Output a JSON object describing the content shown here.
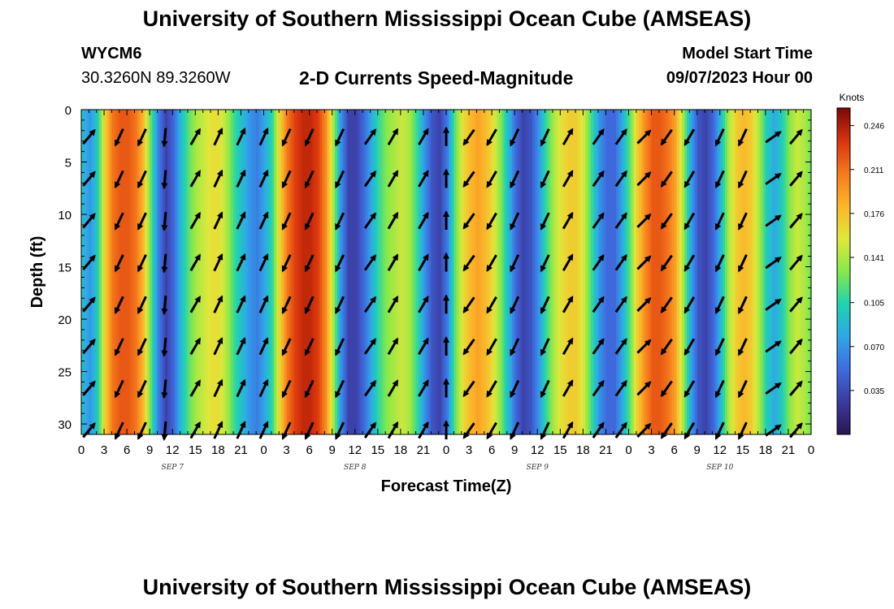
{
  "header": {
    "title": "University of Southern Mississippi Ocean Cube (AMSEAS)",
    "station": "WYCM6",
    "coordinates": "30.3260N  89.3260W",
    "subtitle": "2-D Currents Speed-Magnitude",
    "model_start_label": "Model Start Time",
    "model_start_value": "09/07/2023 Hour 00"
  },
  "footer": {
    "title": "University of Southern Mississippi Ocean Cube (AMSEAS)"
  },
  "chart_data": {
    "type": "heatmap",
    "xlabel": "Forecast Time(Z)",
    "ylabel": "Depth (ft)",
    "xlim": [
      0,
      96
    ],
    "ylim": [
      31,
      0
    ],
    "x_ticks": [
      0,
      3,
      6,
      9,
      12,
      15,
      18,
      21,
      24,
      27,
      30,
      33,
      36,
      39,
      42,
      45,
      48,
      51,
      54,
      57,
      60,
      63,
      66,
      69,
      72,
      75,
      78,
      81,
      84,
      87,
      90,
      93,
      96
    ],
    "x_tick_labels": [
      "0",
      "3",
      "6",
      "9",
      "12",
      "15",
      "18",
      "21",
      "0",
      "3",
      "6",
      "9",
      "12",
      "15",
      "18",
      "21",
      "0",
      "3",
      "6",
      "9",
      "12",
      "15",
      "18",
      "21",
      "0",
      "3",
      "6",
      "9",
      "12",
      "15",
      "18",
      "21",
      "0"
    ],
    "y_ticks": [
      0,
      5,
      10,
      15,
      20,
      25,
      30
    ],
    "y_tick_labels": [
      "0",
      "5",
      "10",
      "15",
      "20",
      "25",
      "30"
    ],
    "day_labels": [
      {
        "hour": 12,
        "text": "SEP 7"
      },
      {
        "hour": 36,
        "text": "SEP 8"
      },
      {
        "hour": 60,
        "text": "SEP 9"
      },
      {
        "hour": 84,
        "text": "SEP 10"
      }
    ],
    "colorbar": {
      "unit": "Knots",
      "min": 0.0,
      "max": 0.26,
      "ticks": [
        0.246,
        0.211,
        0.176,
        0.141,
        0.105,
        0.07,
        0.035
      ],
      "tick_labels": [
        "0.246",
        "0.211",
        "0.176",
        "0.141",
        "0.105",
        "0.070",
        "0.035"
      ],
      "colors": [
        "#2a1650",
        "#3b3aa0",
        "#3f6ce0",
        "#2fa7e8",
        "#1fd3b0",
        "#86e84a",
        "#e0e83a",
        "#fbb52a",
        "#f6791c",
        "#d8330c",
        "#7a0808"
      ]
    },
    "speed_profile_knots": [
      {
        "hour": 0,
        "speed": 0.09
      },
      {
        "hour": 1,
        "speed": 0.07
      },
      {
        "hour": 2,
        "speed": 0.1
      },
      {
        "hour": 3,
        "speed": 0.17
      },
      {
        "hour": 4,
        "speed": 0.21
      },
      {
        "hour": 5,
        "speed": 0.22
      },
      {
        "hour": 6,
        "speed": 0.22
      },
      {
        "hour": 7,
        "speed": 0.21
      },
      {
        "hour": 8,
        "speed": 0.18
      },
      {
        "hour": 9,
        "speed": 0.12
      },
      {
        "hour": 10,
        "speed": 0.06
      },
      {
        "hour": 11,
        "speed": 0.03
      },
      {
        "hour": 12,
        "speed": 0.05
      },
      {
        "hour": 13,
        "speed": 0.09
      },
      {
        "hour": 14,
        "speed": 0.12
      },
      {
        "hour": 15,
        "speed": 0.14
      },
      {
        "hour": 16,
        "speed": 0.15
      },
      {
        "hour": 17,
        "speed": 0.16
      },
      {
        "hour": 18,
        "speed": 0.16
      },
      {
        "hour": 19,
        "speed": 0.14
      },
      {
        "hour": 20,
        "speed": 0.11
      },
      {
        "hour": 21,
        "speed": 0.09
      },
      {
        "hour": 22,
        "speed": 0.07
      },
      {
        "hour": 23,
        "speed": 0.06
      },
      {
        "hour": 24,
        "speed": 0.08
      },
      {
        "hour": 25,
        "speed": 0.11
      },
      {
        "hour": 26,
        "speed": 0.17
      },
      {
        "hour": 27,
        "speed": 0.21
      },
      {
        "hour": 28,
        "speed": 0.23
      },
      {
        "hour": 29,
        "speed": 0.24
      },
      {
        "hour": 30,
        "speed": 0.24
      },
      {
        "hour": 31,
        "speed": 0.23
      },
      {
        "hour": 32,
        "speed": 0.2
      },
      {
        "hour": 33,
        "speed": 0.14
      },
      {
        "hour": 34,
        "speed": 0.07
      },
      {
        "hour": 35,
        "speed": 0.03
      },
      {
        "hour": 36,
        "speed": 0.03
      },
      {
        "hour": 37,
        "speed": 0.05
      },
      {
        "hour": 38,
        "speed": 0.08
      },
      {
        "hour": 39,
        "speed": 0.11
      },
      {
        "hour": 40,
        "speed": 0.13
      },
      {
        "hour": 41,
        "speed": 0.14
      },
      {
        "hour": 42,
        "speed": 0.15
      },
      {
        "hour": 43,
        "speed": 0.14
      },
      {
        "hour": 44,
        "speed": 0.11
      },
      {
        "hour": 45,
        "speed": 0.07
      },
      {
        "hour": 46,
        "speed": 0.04
      },
      {
        "hour": 47,
        "speed": 0.03
      },
      {
        "hour": 48,
        "speed": 0.06
      },
      {
        "hour": 49,
        "speed": 0.12
      },
      {
        "hour": 50,
        "speed": 0.16
      },
      {
        "hour": 51,
        "speed": 0.18
      },
      {
        "hour": 52,
        "speed": 0.19
      },
      {
        "hour": 53,
        "speed": 0.18
      },
      {
        "hour": 54,
        "speed": 0.16
      },
      {
        "hour": 55,
        "speed": 0.13
      },
      {
        "hour": 56,
        "speed": 0.09
      },
      {
        "hour": 57,
        "speed": 0.05
      },
      {
        "hour": 58,
        "speed": 0.03
      },
      {
        "hour": 59,
        "speed": 0.04
      },
      {
        "hour": 60,
        "speed": 0.07
      },
      {
        "hour": 61,
        "speed": 0.11
      },
      {
        "hour": 62,
        "speed": 0.14
      },
      {
        "hour": 63,
        "speed": 0.16
      },
      {
        "hour": 64,
        "speed": 0.17
      },
      {
        "hour": 65,
        "speed": 0.17
      },
      {
        "hour": 66,
        "speed": 0.15
      },
      {
        "hour": 67,
        "speed": 0.11
      },
      {
        "hour": 68,
        "speed": 0.07
      },
      {
        "hour": 69,
        "speed": 0.05
      },
      {
        "hour": 70,
        "speed": 0.05
      },
      {
        "hour": 71,
        "speed": 0.08
      },
      {
        "hour": 72,
        "speed": 0.12
      },
      {
        "hour": 73,
        "speed": 0.17
      },
      {
        "hour": 74,
        "speed": 0.2
      },
      {
        "hour": 75,
        "speed": 0.22
      },
      {
        "hour": 76,
        "speed": 0.22
      },
      {
        "hour": 77,
        "speed": 0.21
      },
      {
        "hour": 78,
        "speed": 0.19
      },
      {
        "hour": 79,
        "speed": 0.14
      },
      {
        "hour": 80,
        "speed": 0.08
      },
      {
        "hour": 81,
        "speed": 0.04
      },
      {
        "hour": 82,
        "speed": 0.03
      },
      {
        "hour": 83,
        "speed": 0.05
      },
      {
        "hour": 84,
        "speed": 0.09
      },
      {
        "hour": 85,
        "speed": 0.14
      },
      {
        "hour": 86,
        "speed": 0.17
      },
      {
        "hour": 87,
        "speed": 0.18
      },
      {
        "hour": 88,
        "speed": 0.17
      },
      {
        "hour": 89,
        "speed": 0.14
      },
      {
        "hour": 90,
        "speed": 0.1
      },
      {
        "hour": 91,
        "speed": 0.08
      },
      {
        "hour": 92,
        "speed": 0.1
      },
      {
        "hour": 93,
        "speed": 0.13
      },
      {
        "hour": 94,
        "speed": 0.15
      },
      {
        "hour": 95,
        "speed": 0.14
      },
      {
        "hour": 96,
        "speed": 0.12
      }
    ],
    "vector_hours": [
      1,
      5,
      8,
      11,
      15,
      18,
      21,
      24,
      27,
      30,
      34,
      38,
      41,
      45,
      48,
      51,
      54,
      57,
      61,
      64,
      68,
      71,
      74,
      77,
      80,
      84,
      87,
      91,
      94
    ],
    "vector_depths_ft": [
      2,
      6,
      10,
      14,
      18,
      22,
      26,
      30
    ],
    "vector_direction_deg": [
      {
        "hour": 1,
        "dir": 40
      },
      {
        "hour": 5,
        "dir": 205
      },
      {
        "hour": 8,
        "dir": 205
      },
      {
        "hour": 11,
        "dir": 185
      },
      {
        "hour": 15,
        "dir": 30
      },
      {
        "hour": 18,
        "dir": 25
      },
      {
        "hour": 21,
        "dir": 25
      },
      {
        "hour": 24,
        "dir": 25
      },
      {
        "hour": 27,
        "dir": 205
      },
      {
        "hour": 30,
        "dir": 205
      },
      {
        "hour": 34,
        "dir": 205
      },
      {
        "hour": 38,
        "dir": 35
      },
      {
        "hour": 41,
        "dir": 30
      },
      {
        "hour": 45,
        "dir": 30
      },
      {
        "hour": 48,
        "dir": 0
      },
      {
        "hour": 51,
        "dir": 215
      },
      {
        "hour": 54,
        "dir": 210
      },
      {
        "hour": 57,
        "dir": 205
      },
      {
        "hour": 61,
        "dir": 205
      },
      {
        "hour": 64,
        "dir": 30
      },
      {
        "hour": 68,
        "dir": 35
      },
      {
        "hour": 71,
        "dir": 35
      },
      {
        "hour": 74,
        "dir": 45
      },
      {
        "hour": 77,
        "dir": 215
      },
      {
        "hour": 80,
        "dir": 210
      },
      {
        "hour": 84,
        "dir": 205
      },
      {
        "hour": 87,
        "dir": 205
      },
      {
        "hour": 91,
        "dir": 55
      },
      {
        "hour": 94,
        "dir": 40
      }
    ]
  }
}
